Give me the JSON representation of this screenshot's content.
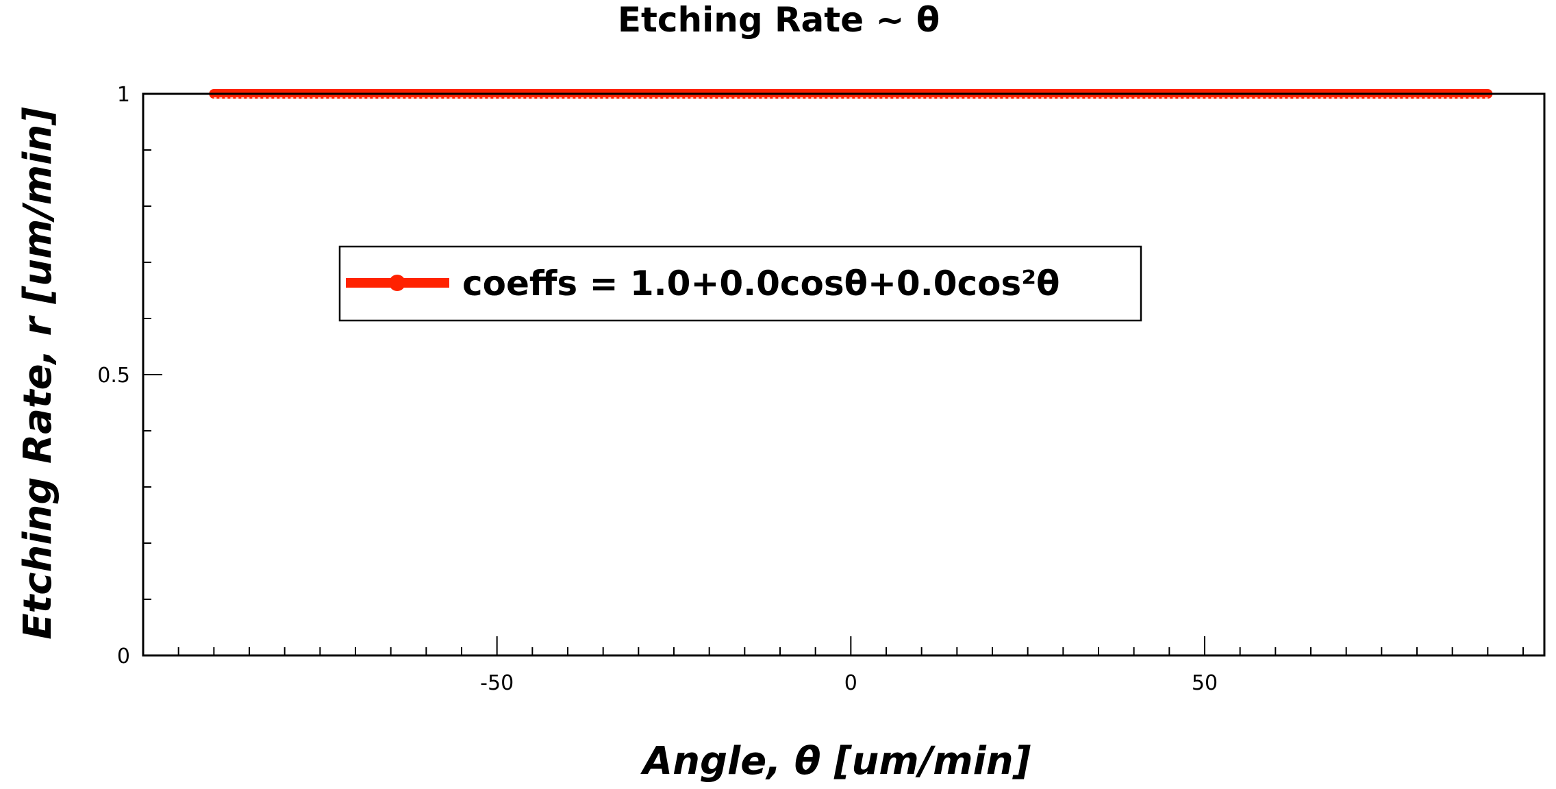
{
  "chart_data": {
    "type": "line",
    "title": "Etching Rate ~ θ",
    "xlabel": "Angle, θ [um/min]",
    "ylabel": "Etching Rate, r [um/min]",
    "xlim": [
      -100,
      98
    ],
    "ylim": [
      0,
      1
    ],
    "x_ticks": [
      -50,
      0,
      50
    ],
    "y_ticks": [
      0,
      0.5,
      1
    ],
    "x_minor_step": 5,
    "y_minor_step": 0.1,
    "grid": false,
    "legend_position": "upper-center",
    "series": [
      {
        "name": "coeffs = 1.0+0.0cosθ+0.0cos²θ",
        "color": "#ff2200",
        "marker": "circle",
        "x": [
          -90,
          -88,
          -86,
          -84,
          -82,
          -80,
          -78,
          -76,
          -74,
          -72,
          -70,
          -68,
          -66,
          -64,
          -62,
          -60,
          -58,
          -56,
          -54,
          -52,
          -50,
          -48,
          -46,
          -44,
          -42,
          -40,
          -38,
          -36,
          -34,
          -32,
          -30,
          -28,
          -26,
          -24,
          -22,
          -20,
          -18,
          -16,
          -14,
          -12,
          -10,
          -8,
          -6,
          -4,
          -2,
          0,
          2,
          4,
          6,
          8,
          10,
          12,
          14,
          16,
          18,
          20,
          22,
          24,
          26,
          28,
          30,
          32,
          34,
          36,
          38,
          40,
          42,
          44,
          46,
          48,
          50,
          52,
          54,
          56,
          58,
          60,
          62,
          64,
          66,
          68,
          70,
          72,
          74,
          76,
          78,
          80,
          82,
          84,
          86,
          88,
          90
        ],
        "y": [
          1,
          1,
          1,
          1,
          1,
          1,
          1,
          1,
          1,
          1,
          1,
          1,
          1,
          1,
          1,
          1,
          1,
          1,
          1,
          1,
          1,
          1,
          1,
          1,
          1,
          1,
          1,
          1,
          1,
          1,
          1,
          1,
          1,
          1,
          1,
          1,
          1,
          1,
          1,
          1,
          1,
          1,
          1,
          1,
          1,
          1,
          1,
          1,
          1,
          1,
          1,
          1,
          1,
          1,
          1,
          1,
          1,
          1,
          1,
          1,
          1,
          1,
          1,
          1,
          1,
          1,
          1,
          1,
          1,
          1,
          1,
          1,
          1,
          1,
          1,
          1,
          1,
          1,
          1,
          1,
          1,
          1,
          1,
          1,
          1,
          1,
          1,
          1,
          1,
          1,
          1
        ]
      }
    ]
  }
}
